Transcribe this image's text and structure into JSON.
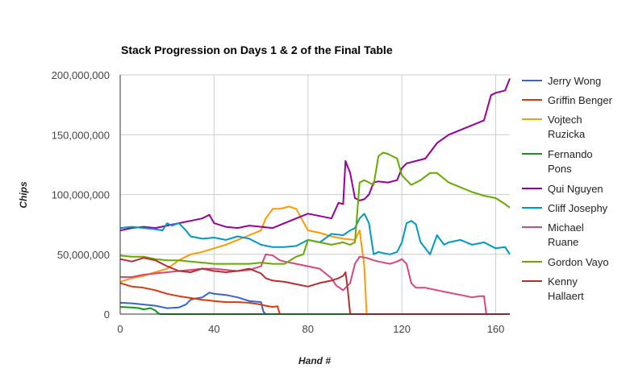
{
  "chart_data": {
    "type": "line",
    "title": "Stack Progression on Days 1 & 2 of the Final Table",
    "xlabel": "Hand #",
    "ylabel": "Chips",
    "xlim": [
      0,
      166
    ],
    "ylim": [
      0,
      200000000
    ],
    "xticks": [
      0,
      40,
      80,
      120,
      160
    ],
    "xtick_labels": [
      "0",
      "40",
      "80",
      "120",
      "160"
    ],
    "yticks": [
      0,
      50000000,
      100000000,
      150000000,
      200000000
    ],
    "ytick_labels": [
      "0",
      "50,000,000",
      "100,000,000",
      "150,000,000",
      "200,000,000"
    ],
    "grid": true,
    "legend_position": "right",
    "series": [
      {
        "name": "Jerry Wong",
        "legend_lines": [
          "Jerry Wong"
        ],
        "color": "#3366cc",
        "x": [
          0,
          5,
          10,
          15,
          20,
          25,
          28,
          30,
          32,
          35,
          38,
          40,
          45,
          50,
          55,
          60,
          61,
          62,
          166
        ],
        "y": [
          9500000,
          9000000,
          8000000,
          7000000,
          5000000,
          5500000,
          8000000,
          12000000,
          13000000,
          14000000,
          18000000,
          17000000,
          16000000,
          14000000,
          11000000,
          10000000,
          2000000,
          0,
          0
        ]
      },
      {
        "name": "Griffin Benger",
        "legend_lines": [
          "Griffin Benger"
        ],
        "color": "#dc3912",
        "x": [
          0,
          5,
          10,
          15,
          20,
          25,
          30,
          35,
          40,
          45,
          50,
          55,
          60,
          62,
          65,
          67,
          68,
          166
        ],
        "y": [
          26000000,
          23000000,
          22000000,
          20000000,
          17000000,
          15000000,
          13500000,
          12000000,
          11000000,
          10000000,
          10000000,
          9500000,
          8000000,
          7000000,
          6000000,
          6500000,
          0,
          0
        ]
      },
      {
        "name": "Vojtech Ruzicka",
        "legend_lines": [
          "Vojtech",
          "Ruzicka"
        ],
        "color": "#ff9900",
        "x": [
          0,
          5,
          10,
          15,
          20,
          25,
          30,
          35,
          40,
          45,
          50,
          55,
          60,
          62,
          65,
          68,
          72,
          75,
          80,
          85,
          90,
          95,
          100,
          102,
          104,
          105,
          166
        ],
        "y": [
          27000000,
          30000000,
          32000000,
          35000000,
          38000000,
          45000000,
          50000000,
          52000000,
          55000000,
          58000000,
          62000000,
          66000000,
          70000000,
          80000000,
          88000000,
          88000000,
          90000000,
          88000000,
          70000000,
          68000000,
          65000000,
          63000000,
          62000000,
          70000000,
          40000000,
          0,
          0
        ]
      },
      {
        "name": "Fernando Pons",
        "legend_lines": [
          "Fernando",
          "Pons"
        ],
        "color": "#109618",
        "x": [
          0,
          5,
          8,
          10,
          13,
          15,
          16,
          17,
          166
        ],
        "y": [
          6000000,
          5500000,
          5000000,
          4000000,
          5000000,
          3000000,
          1000000,
          0,
          0
        ]
      },
      {
        "name": "Qui Nguyen",
        "legend_lines": [
          "Qui Nguyen"
        ],
        "color": "#990099",
        "x": [
          0,
          5,
          10,
          15,
          20,
          25,
          30,
          35,
          38,
          40,
          45,
          50,
          55,
          60,
          65,
          70,
          75,
          80,
          85,
          90,
          93,
          95,
          96,
          98,
          100,
          102,
          104,
          106,
          108,
          110,
          114,
          118,
          120,
          122,
          126,
          130,
          135,
          140,
          145,
          150,
          155,
          158,
          160,
          164,
          166
        ],
        "y": [
          70000000,
          72000000,
          73000000,
          72000000,
          74000000,
          76000000,
          78000000,
          80000000,
          83000000,
          76000000,
          73000000,
          72000000,
          74000000,
          73000000,
          72000000,
          76000000,
          80000000,
          84000000,
          82000000,
          80000000,
          93000000,
          92000000,
          128000000,
          118000000,
          97000000,
          95000000,
          96000000,
          100000000,
          110000000,
          111000000,
          110000000,
          112000000,
          122000000,
          126000000,
          128000000,
          130000000,
          143000000,
          150000000,
          154000000,
          158000000,
          162000000,
          183000000,
          185000000,
          187000000,
          197000000
        ]
      },
      {
        "name": "Cliff Josephy",
        "legend_lines": [
          "Cliff Josephy"
        ],
        "color": "#0099c6",
        "x": [
          0,
          5,
          10,
          15,
          18,
          20,
          22,
          25,
          28,
          30,
          35,
          40,
          45,
          50,
          55,
          60,
          65,
          70,
          75,
          80,
          85,
          90,
          95,
          98,
          100,
          102,
          104,
          106,
          108,
          110,
          112,
          115,
          118,
          120,
          122,
          124,
          126,
          128,
          130,
          132,
          135,
          138,
          140,
          145,
          150,
          155,
          160,
          164,
          166
        ],
        "y": [
          72000000,
          73000000,
          72000000,
          71000000,
          70000000,
          76000000,
          74000000,
          76000000,
          70000000,
          65000000,
          63000000,
          64000000,
          62000000,
          65000000,
          63000000,
          58000000,
          56000000,
          56000000,
          57000000,
          62000000,
          60000000,
          67000000,
          66000000,
          70000000,
          72000000,
          80000000,
          84000000,
          76000000,
          50000000,
          52000000,
          51000000,
          50000000,
          52000000,
          60000000,
          76000000,
          78000000,
          75000000,
          60000000,
          55000000,
          50000000,
          66000000,
          58000000,
          60000000,
          62000000,
          58000000,
          60000000,
          55000000,
          56000000,
          50000000
        ]
      },
      {
        "name": "Michael Ruane",
        "legend_lines": [
          "Michael",
          "Ruane"
        ],
        "color": "#dd4477",
        "x": [
          0,
          5,
          10,
          15,
          20,
          25,
          30,
          35,
          40,
          45,
          50,
          55,
          60,
          62,
          65,
          68,
          70,
          75,
          80,
          85,
          90,
          92,
          95,
          98,
          100,
          102,
          105,
          108,
          110,
          115,
          118,
          120,
          122,
          124,
          126,
          130,
          135,
          140,
          145,
          150,
          153,
          155,
          156,
          166
        ],
        "y": [
          31000000,
          31000000,
          33000000,
          34000000,
          35000000,
          36000000,
          37000000,
          38000000,
          38000000,
          37000000,
          36000000,
          37000000,
          40000000,
          50000000,
          49000000,
          45000000,
          44000000,
          42000000,
          40000000,
          38000000,
          30000000,
          24000000,
          20000000,
          26000000,
          42000000,
          48000000,
          47000000,
          45000000,
          44000000,
          42000000,
          44000000,
          46000000,
          42000000,
          26000000,
          22000000,
          22000000,
          20000000,
          18000000,
          16000000,
          14000000,
          15000000,
          15000000,
          0,
          0
        ]
      },
      {
        "name": "Gordon Vayo",
        "legend_lines": [
          "Gordon Vayo"
        ],
        "color": "#66aa00",
        "x": [
          0,
          5,
          10,
          15,
          20,
          25,
          30,
          35,
          40,
          45,
          50,
          55,
          60,
          65,
          70,
          75,
          78,
          80,
          85,
          90,
          95,
          98,
          100,
          102,
          104,
          106,
          108,
          110,
          112,
          114,
          116,
          118,
          120,
          122,
          124,
          126,
          128,
          130,
          132,
          135,
          140,
          145,
          150,
          155,
          160,
          164,
          166
        ],
        "y": [
          49000000,
          48000000,
          48000000,
          46000000,
          45000000,
          45000000,
          44000000,
          43000000,
          42000000,
          42000000,
          42000000,
          42000000,
          43000000,
          42000000,
          42000000,
          48000000,
          50000000,
          62000000,
          60000000,
          58000000,
          60000000,
          58000000,
          60000000,
          110000000,
          112000000,
          110000000,
          108000000,
          132000000,
          135000000,
          134000000,
          132000000,
          130000000,
          116000000,
          112000000,
          108000000,
          110000000,
          112000000,
          115000000,
          118000000,
          118000000,
          110000000,
          106000000,
          102000000,
          99000000,
          97000000,
          92000000,
          89000000
        ]
      },
      {
        "name": "Kenny Hallaert",
        "legend_lines": [
          "Kenny",
          "Hallaert"
        ],
        "color": "#b82e2e",
        "x": [
          0,
          5,
          10,
          15,
          20,
          25,
          30,
          35,
          40,
          45,
          50,
          55,
          60,
          62,
          65,
          70,
          75,
          80,
          85,
          90,
          93,
          95,
          96,
          97,
          98,
          166
        ],
        "y": [
          46000000,
          44000000,
          47000000,
          45000000,
          40000000,
          36000000,
          35000000,
          38000000,
          36000000,
          35000000,
          36000000,
          38000000,
          34000000,
          30000000,
          28000000,
          27000000,
          25000000,
          23000000,
          26000000,
          28000000,
          30000000,
          32000000,
          35000000,
          20000000,
          0,
          0
        ]
      }
    ]
  }
}
